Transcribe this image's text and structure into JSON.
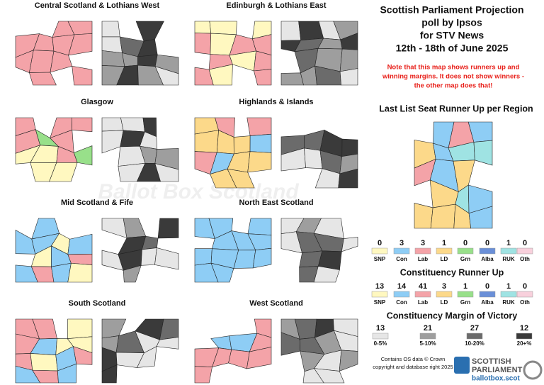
{
  "regions": [
    "Central Scotland & Lothians West",
    "Edinburgh & Lothians East",
    "Glasgow",
    "Highlands & Islands",
    "Mid Scotland & Fife",
    "North East Scotland",
    "South Scotland",
    "West Scotland"
  ],
  "header": {
    "lines": [
      "Scottish Parliament Projection",
      "poll by Ipsos",
      "for STV News",
      "12th - 18th of June 2025"
    ],
    "note": [
      "Note that this map shows runners up and",
      "winning margins. It does not show winners -",
      "the other map does that!"
    ]
  },
  "list_runner_up": {
    "title": "Last List Seat Runner Up per Region",
    "items": [
      {
        "party": "SNP",
        "count": 0,
        "color": "#fff8c0"
      },
      {
        "party": "Con",
        "count": 3,
        "color": "#8ecdf5"
      },
      {
        "party": "Lab",
        "count": 3,
        "color": "#f4a3a8"
      },
      {
        "party": "LD",
        "count": 1,
        "color": "#fcd98a"
      },
      {
        "party": "Grn",
        "count": 0,
        "color": "#98e08a"
      },
      {
        "party": "Alba",
        "count": 0,
        "color": "#6a8fd8"
      },
      {
        "party": "RUK",
        "count": 1,
        "color": "#9fe3e3"
      },
      {
        "party": "Oth",
        "count": 0,
        "color": "#f8d0dc"
      }
    ]
  },
  "constituency_runner_up": {
    "title": "Constituency Runner Up",
    "items": [
      {
        "party": "SNP",
        "count": 13,
        "color": "#fff8c0"
      },
      {
        "party": "Con",
        "count": 14,
        "color": "#8ecdf5"
      },
      {
        "party": "Lab",
        "count": 41,
        "color": "#f4a3a8"
      },
      {
        "party": "LD",
        "count": 3,
        "color": "#fcd98a"
      },
      {
        "party": "Grn",
        "count": 1,
        "color": "#98e08a"
      },
      {
        "party": "Alba",
        "count": 0,
        "color": "#6a8fd8"
      },
      {
        "party": "RUK",
        "count": 1,
        "color": "#9fe3e3"
      },
      {
        "party": "Oth",
        "count": 0,
        "color": "#f8d0dc"
      }
    ]
  },
  "margin": {
    "title": "Constituency Margin of Victory",
    "items": [
      {
        "label": "0-5%",
        "count": 13,
        "color": "#e6e6e6"
      },
      {
        "label": "5-10%",
        "count": 21,
        "color": "#9e9e9e"
      },
      {
        "label": "10-20%",
        "count": 27,
        "color": "#6b6b6b"
      },
      {
        "label": "20+%",
        "count": 12,
        "color": "#3a3a3a"
      }
    ]
  },
  "watermark": "Ballot Box Scotland",
  "footer": [
    "Contains OS data © Crown",
    "copyright and database right 2025"
  ],
  "logo": [
    "SCOTTISH",
    "PARLIAMENT",
    "ballotbox.scot"
  ]
}
